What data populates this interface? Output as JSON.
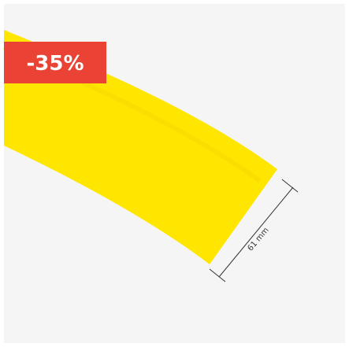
{
  "badge": "-35%",
  "dimension_label": "61 mm"
}
